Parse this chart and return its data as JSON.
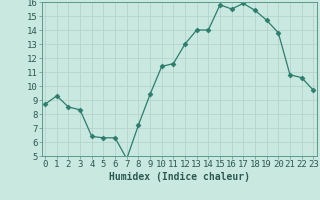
{
  "x": [
    0,
    1,
    2,
    3,
    4,
    5,
    6,
    7,
    8,
    9,
    10,
    11,
    12,
    13,
    14,
    15,
    16,
    17,
    18,
    19,
    20,
    21,
    22,
    23
  ],
  "y": [
    8.7,
    9.3,
    8.5,
    8.3,
    6.4,
    6.3,
    6.3,
    4.8,
    7.2,
    9.4,
    11.4,
    11.6,
    13.0,
    14.0,
    14.0,
    15.8,
    15.5,
    15.9,
    15.4,
    14.7,
    13.8,
    10.8,
    10.6,
    9.7
  ],
  "line_color": "#2d7d6e",
  "marker": "D",
  "marker_size": 2.5,
  "bg_color": "#c8e8e0",
  "grid_color": "#b8d4cc",
  "xlabel": "Humidex (Indice chaleur)",
  "ylim": [
    5,
    16
  ],
  "yticks": [
    5,
    6,
    7,
    8,
    9,
    10,
    11,
    12,
    13,
    14,
    15,
    16
  ],
  "xticks": [
    0,
    1,
    2,
    3,
    4,
    5,
    6,
    7,
    8,
    9,
    10,
    11,
    12,
    13,
    14,
    15,
    16,
    17,
    18,
    19,
    20,
    21,
    22,
    23
  ],
  "xlabel_fontsize": 7,
  "tick_fontsize": 6.5,
  "text_color": "#2d5a52",
  "spine_color": "#5a9a8a"
}
